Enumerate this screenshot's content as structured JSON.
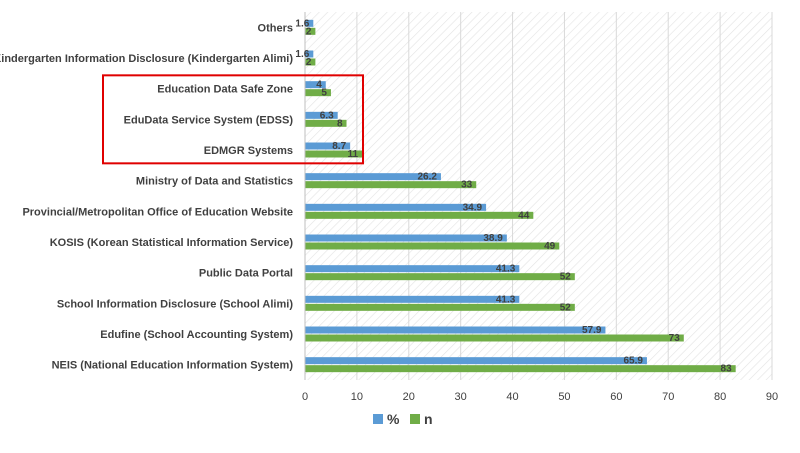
{
  "chart_data": {
    "type": "bar",
    "orientation": "horizontal",
    "categories": [
      "Others",
      "Kindergarten Information Disclosure (Kindergarten Alimi)",
      "Education Data Safe Zone",
      "EduData Service System (EDSS)",
      "EDMGR Systems",
      "Ministry of Data and Statistics",
      "Provincial/Metropolitan Office of Education Website",
      "KOSIS (Korean Statistical Information Service)",
      "Public Data Portal",
      "School Information Disclosure (School Alimi)",
      "Edufine (School Accounting System)",
      "NEIS (National Education Information System)"
    ],
    "series": [
      {
        "name": "%",
        "color": "#5b9bd5",
        "values": [
          1.6,
          1.6,
          4,
          6.3,
          8.7,
          26.2,
          34.9,
          38.9,
          41.3,
          41.3,
          57.9,
          65.9
        ],
        "labels": [
          "1.6",
          "1.6",
          "4",
          "6.3",
          "8.7",
          "26.2",
          "34.9",
          "38.9",
          "41.3",
          "41.3",
          "57.9",
          "65.9"
        ]
      },
      {
        "name": "n",
        "color": "#70ad47",
        "values": [
          2,
          2,
          5,
          8,
          11,
          33,
          44,
          49,
          52,
          52,
          73,
          83
        ],
        "labels": [
          "2",
          "2",
          "5",
          "8",
          "11",
          "33",
          "44",
          "49",
          "52",
          "52",
          "73",
          "83"
        ]
      }
    ],
    "xlim": [
      0,
      90
    ],
    "xticks": [
      "0",
      "10",
      "20",
      "30",
      "40",
      "50",
      "60",
      "70",
      "80",
      "90"
    ],
    "title": "",
    "xlabel": "",
    "ylabel": "",
    "legend_position": "bottom",
    "plot_background": "diagonal-hatch",
    "highlight": {
      "categories": [
        "Education Data Safe Zone",
        "EduData Service System (EDSS)",
        "EDMGR Systems"
      ],
      "color": "#e00000"
    }
  }
}
